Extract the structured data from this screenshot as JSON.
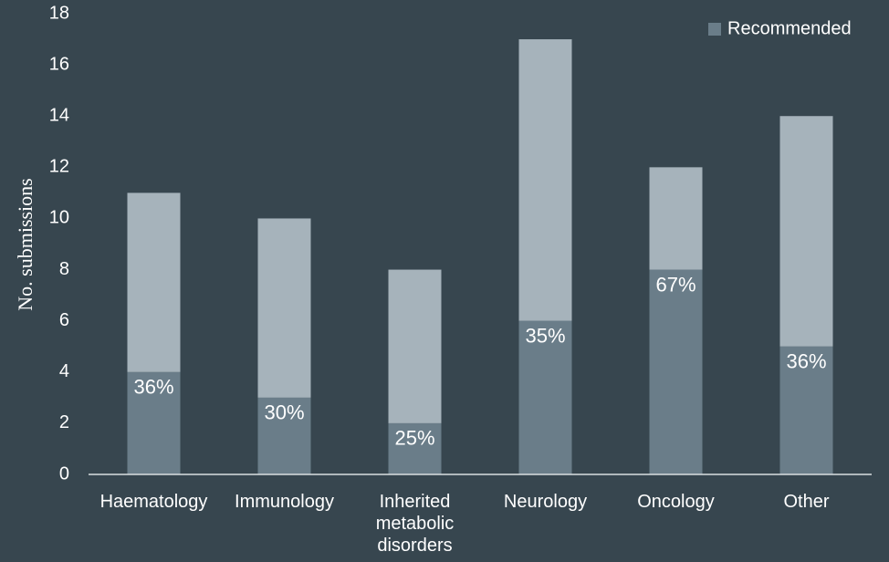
{
  "chart_data": {
    "type": "stacked_bar",
    "y_label": "No. submissions",
    "categories": [
      "Haematology",
      "Immunology",
      "Inherited metabolic disorders",
      "Neurology",
      "Oncology",
      "Other"
    ],
    "series": [
      {
        "name": "Recommended",
        "color": "#6a7d89",
        "values": [
          4,
          3,
          2,
          6,
          8,
          5
        ]
      },
      {
        "color": "#a6b3bb",
        "values": [
          7,
          7,
          6,
          11,
          4,
          9
        ]
      }
    ],
    "annotations": [
      "36%",
      "30%",
      "25%",
      "35%",
      "67%",
      "36%"
    ],
    "ylim": [
      0,
      18
    ],
    "yticks": [
      0,
      2,
      4,
      6,
      8,
      10,
      12,
      14,
      16,
      18
    ],
    "legend": "top-right"
  }
}
